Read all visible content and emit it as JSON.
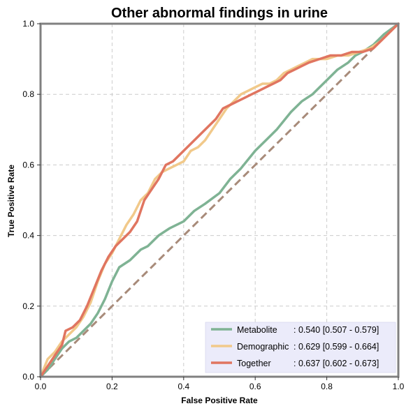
{
  "chart_data": {
    "type": "line",
    "title": "Other abnormal findings in urine",
    "xlabel": "False Positive Rate",
    "ylabel": "True Positive Rate",
    "xlim": [
      0,
      1
    ],
    "ylim": [
      0,
      1
    ],
    "xticks": [
      "0.0",
      "0.2",
      "0.4",
      "0.6",
      "0.8",
      "1.0"
    ],
    "yticks": [
      "0.0",
      "0.2",
      "0.4",
      "0.6",
      "0.8",
      "1.0"
    ],
    "grid": true,
    "legend_position": "lower-right",
    "reference_line": {
      "x": [
        0,
        1
      ],
      "y": [
        0,
        1
      ],
      "style": "dashed",
      "color": "#a88b7a"
    },
    "series": [
      {
        "name": "Metabolite",
        "label_name": "Metabolite",
        "label_stats": ": 0.540 [0.507 - 0.579]",
        "color": "#7fb394",
        "x": [
          0,
          0.02,
          0.04,
          0.06,
          0.08,
          0.1,
          0.12,
          0.14,
          0.16,
          0.18,
          0.2,
          0.22,
          0.25,
          0.28,
          0.3,
          0.33,
          0.36,
          0.4,
          0.43,
          0.46,
          0.5,
          0.53,
          0.56,
          0.6,
          0.63,
          0.66,
          0.7,
          0.73,
          0.76,
          0.8,
          0.83,
          0.86,
          0.88,
          0.9,
          0.93,
          0.96,
          1.0
        ],
        "y": [
          0,
          0.02,
          0.05,
          0.08,
          0.1,
          0.11,
          0.13,
          0.15,
          0.18,
          0.22,
          0.27,
          0.31,
          0.33,
          0.36,
          0.37,
          0.4,
          0.42,
          0.44,
          0.47,
          0.49,
          0.52,
          0.56,
          0.59,
          0.64,
          0.67,
          0.7,
          0.75,
          0.78,
          0.8,
          0.84,
          0.87,
          0.89,
          0.91,
          0.92,
          0.94,
          0.97,
          1.0
        ]
      },
      {
        "name": "Demographic",
        "label_name": "Demographic",
        "label_stats": ": 0.629 [0.599 - 0.664]",
        "color": "#f1c98a",
        "x": [
          0,
          0.02,
          0.04,
          0.06,
          0.08,
          0.1,
          0.12,
          0.14,
          0.16,
          0.18,
          0.2,
          0.22,
          0.24,
          0.26,
          0.28,
          0.3,
          0.32,
          0.34,
          0.36,
          0.38,
          0.4,
          0.42,
          0.44,
          0.46,
          0.48,
          0.5,
          0.52,
          0.54,
          0.56,
          0.58,
          0.6,
          0.62,
          0.64,
          0.66,
          0.68,
          0.7,
          0.72,
          0.74,
          0.76,
          0.8,
          0.83,
          0.86,
          0.89,
          0.92,
          0.95,
          0.98,
          1.0
        ],
        "y": [
          0,
          0.05,
          0.07,
          0.1,
          0.12,
          0.14,
          0.17,
          0.21,
          0.27,
          0.32,
          0.35,
          0.39,
          0.43,
          0.46,
          0.5,
          0.52,
          0.56,
          0.58,
          0.59,
          0.6,
          0.61,
          0.64,
          0.65,
          0.67,
          0.7,
          0.73,
          0.76,
          0.78,
          0.8,
          0.81,
          0.82,
          0.83,
          0.83,
          0.84,
          0.86,
          0.87,
          0.88,
          0.89,
          0.9,
          0.9,
          0.91,
          0.91,
          0.92,
          0.93,
          0.95,
          0.98,
          1.0
        ]
      },
      {
        "name": "Together",
        "label_name": "Together",
        "label_stats": ": 0.637 [0.602 - 0.673]",
        "color": "#e07560",
        "x": [
          0,
          0.02,
          0.04,
          0.06,
          0.07,
          0.09,
          0.11,
          0.13,
          0.15,
          0.17,
          0.19,
          0.21,
          0.23,
          0.25,
          0.27,
          0.29,
          0.31,
          0.33,
          0.35,
          0.37,
          0.39,
          0.41,
          0.43,
          0.45,
          0.47,
          0.49,
          0.51,
          0.53,
          0.55,
          0.57,
          0.59,
          0.61,
          0.63,
          0.65,
          0.67,
          0.69,
          0.71,
          0.73,
          0.75,
          0.78,
          0.81,
          0.84,
          0.87,
          0.9,
          0.93,
          0.96,
          1.0
        ],
        "y": [
          0,
          0.03,
          0.06,
          0.09,
          0.13,
          0.14,
          0.16,
          0.2,
          0.25,
          0.3,
          0.34,
          0.37,
          0.39,
          0.41,
          0.44,
          0.5,
          0.53,
          0.56,
          0.6,
          0.61,
          0.63,
          0.65,
          0.67,
          0.69,
          0.71,
          0.73,
          0.76,
          0.77,
          0.78,
          0.79,
          0.8,
          0.81,
          0.82,
          0.83,
          0.84,
          0.86,
          0.87,
          0.88,
          0.89,
          0.9,
          0.91,
          0.91,
          0.92,
          0.92,
          0.93,
          0.96,
          1.0
        ]
      }
    ]
  }
}
